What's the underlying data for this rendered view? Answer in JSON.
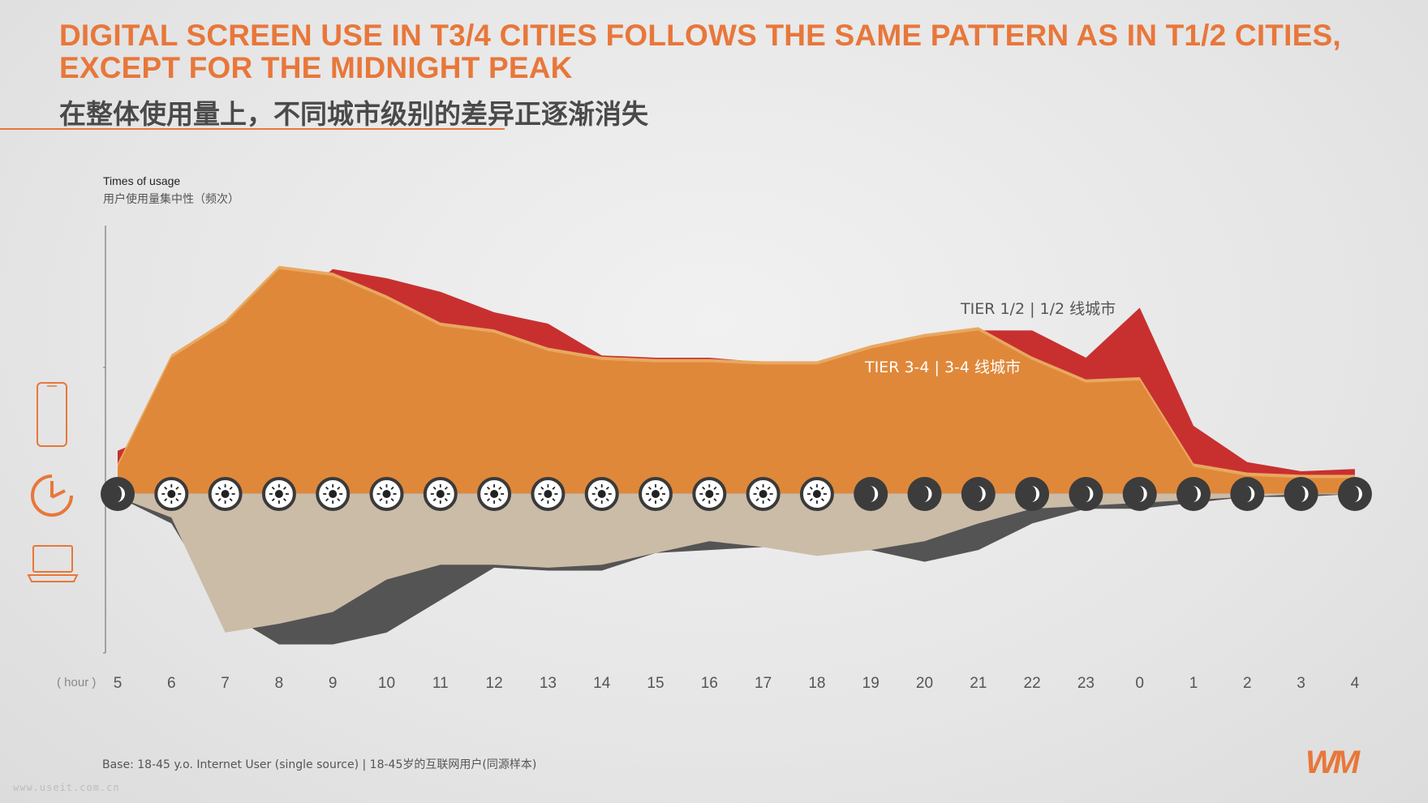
{
  "header": {
    "title": "DIGITAL SCREEN USE IN T3/4 CITIES FOLLOWS THE SAME PATTERN AS IN T1/2 CITIES, EXCEPT FOR THE MIDNIGHT PEAK",
    "subtitle": "在整体使用量上，不同城市级别的差异正逐渐消失"
  },
  "axis_title": {
    "en": "Times of usage",
    "cn": "用户使用量集中性（频次）"
  },
  "x_unit": "( hour )",
  "footer": {
    "base": "Base: 18-45 y.o. Internet User (single source) | 18-45岁的互联网用户(同源样本)",
    "watermark": "www.useit.com.cn",
    "logo": "WM"
  },
  "icons": {
    "mobile": "smartphone-icon",
    "time": "clock-icon",
    "pc": "laptop-icon",
    "day": "sun-icon",
    "night": "moon-icon"
  },
  "colors": {
    "accent": "#e8773a",
    "tier12_mobile": "#c8302f",
    "tier34_mobile": "#e0883a",
    "tier34_mobile_light": "#e8a860",
    "tier12_pc": "#545454",
    "tier34_pc": "#cbbca8"
  },
  "chart_data": {
    "type": "area",
    "x": [
      "5",
      "6",
      "7",
      "8",
      "9",
      "10",
      "11",
      "12",
      "13",
      "14",
      "15",
      "16",
      "17",
      "18",
      "19",
      "20",
      "21",
      "22",
      "23",
      "0",
      "1",
      "2",
      "3",
      "4"
    ],
    "xlabel": "( hour )",
    "ylabel": "Times of usage | 用户使用量集中性（频次）",
    "period": [
      "night",
      "day",
      "day",
      "day",
      "day",
      "day",
      "day",
      "day",
      "day",
      "day",
      "day",
      "day",
      "day",
      "day",
      "night",
      "night",
      "night",
      "night",
      "night",
      "night",
      "night",
      "night",
      "night",
      "night"
    ],
    "ylim_mobile": [
      0,
      100
    ],
    "ylim_pc": [
      0,
      55
    ],
    "series": [
      {
        "name": "TIER 1/2 | 1/2 线城市",
        "group": "mobile",
        "values": [
          19,
          29,
          62,
          80,
          99,
          95,
          89,
          80,
          75,
          61,
          60,
          60,
          58,
          57,
          64,
          70,
          72,
          72,
          60,
          82,
          30,
          14,
          10,
          11
        ]
      },
      {
        "name": "TIER 3-4 | 3-4 线城市",
        "group": "mobile",
        "values": [
          12,
          60,
          75,
          99,
          96,
          86,
          74,
          71,
          63,
          59,
          58,
          58,
          57,
          57,
          64,
          69,
          72,
          59,
          49,
          50,
          12,
          8,
          7,
          7
        ]
      },
      {
        "group": "pc",
        "values": [
          1,
          10,
          40,
          51,
          51,
          47,
          36,
          25,
          26,
          26,
          20,
          19,
          18,
          20,
          19,
          23,
          19,
          10,
          5,
          5,
          3,
          1,
          1,
          0
        ]
      },
      {
        "group": "pc",
        "values": [
          1,
          8,
          47,
          44,
          40,
          29,
          24,
          24,
          25,
          24,
          20,
          16,
          18,
          21,
          19,
          16,
          10,
          5,
          4,
          3,
          2,
          1,
          0,
          0
        ]
      }
    ],
    "annotations": [
      "TIER 1/2 | 1/2 线城市",
      "TIER 3-4 | 3-4 线城市"
    ],
    "grid": false
  }
}
